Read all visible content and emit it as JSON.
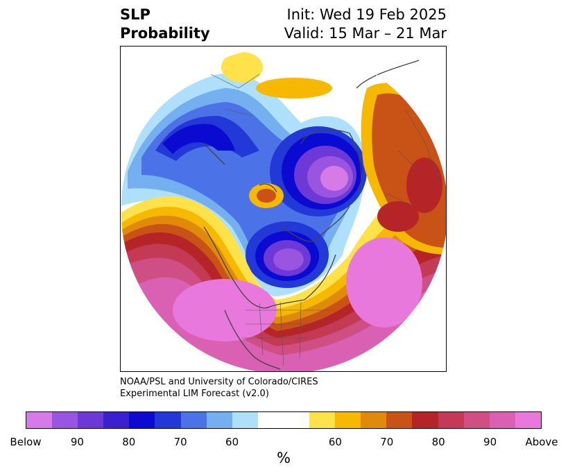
{
  "title": {
    "left_lines": [
      "SLP",
      "Probability"
    ],
    "init": "Init: Wed 19 Feb 2025",
    "valid": "Valid: 15 Mar – 21 Mar"
  },
  "credit": {
    "line1": "NOAA/PSL and University of Colorado/CIRES",
    "line2": "Experimental LIM Forecast (v2.0)"
  },
  "colorbar": {
    "unit": "%",
    "below_colors": [
      "#d67ae8",
      "#9a55e0",
      "#6c39d6",
      "#3b1fd0",
      "#0a0ad0",
      "#2239d8",
      "#4b72e6",
      "#74b0f0",
      "#aee0fb"
    ],
    "neutral_color": "#ffffff",
    "above_colors": [
      "#ffe24a",
      "#f6b900",
      "#e08a0c",
      "#c95216",
      "#b52426",
      "#c43a55",
      "#cf4f85",
      "#da60b3",
      "#e878dc"
    ],
    "tick_labels": [
      "Below",
      "90",
      "80",
      "70",
      "60",
      "60",
      "70",
      "80",
      "90",
      "Above"
    ]
  }
}
